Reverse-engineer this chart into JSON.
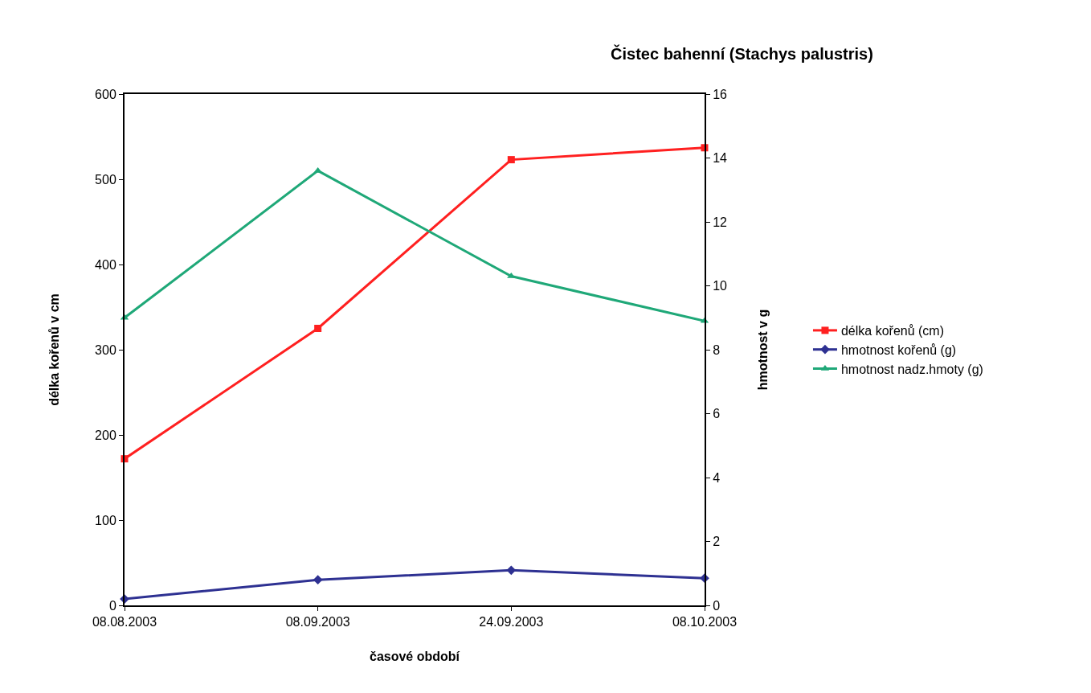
{
  "chart_data": {
    "type": "line",
    "title": "Čistec bahenní (Stachys palustris)",
    "xlabel": "časové období",
    "ylabel": "délka kořenů v cm",
    "y2label": "hmotnost v g",
    "categories": [
      "08.08.2003",
      "08.09.2003",
      "24.09.2003",
      "08.10.2003"
    ],
    "series": [
      {
        "name": "délka kořenů (cm)",
        "color": "#ff2020",
        "marker": "square",
        "values": [
          172,
          325,
          523,
          537
        ]
      },
      {
        "name": "hmotnost kořenů (g)",
        "color": "#2e3192",
        "marker": "diamond",
        "axis": "y2",
        "values": [
          0.2,
          0.8,
          1.1,
          0.85
        ]
      },
      {
        "name": "hmotnost nadz.hmoty (g)",
        "color": "#1fa878",
        "marker": "triangle",
        "axis": "y2",
        "values": [
          9.0,
          13.6,
          10.3,
          8.9
        ]
      }
    ],
    "ylim": [
      0,
      600
    ],
    "yticks": [
      0,
      100,
      200,
      300,
      400,
      500,
      600
    ],
    "y2lim": [
      0,
      16
    ],
    "y2ticks": [
      0,
      2,
      4,
      6,
      8,
      10,
      12,
      14,
      16
    ],
    "legend": "right",
    "line_style": "solid"
  }
}
